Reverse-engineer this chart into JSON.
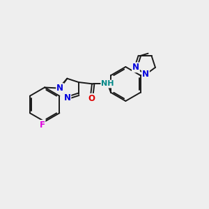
{
  "bg_color": "#eeeeee",
  "bond_color": "#1a1a1a",
  "bond_width": 1.4,
  "atom_colors": {
    "N": "#0000dd",
    "O": "#dd0000",
    "F": "#dd00dd",
    "H": "#008888",
    "C": "#1a1a1a"
  },
  "font_size": 8.5
}
